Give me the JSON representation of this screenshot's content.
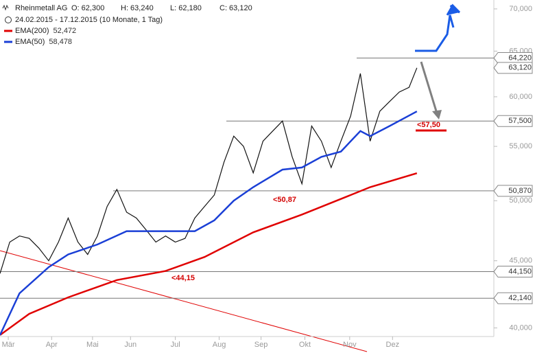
{
  "header": {
    "title": "Rheinmetall AG",
    "open": "O: 62,300",
    "high": "H: 63,240",
    "low": "L: 62,180",
    "close": "C: 63,120",
    "range": "24.02.2015 - 17.12.2015 (10 Monate, 1 Tag)"
  },
  "chart_data": {
    "type": "line",
    "log": true,
    "x": [
      0,
      1,
      2,
      3,
      4,
      5,
      6,
      7,
      8,
      9,
      10,
      11,
      12,
      13,
      14,
      15,
      16,
      17,
      18,
      19,
      20,
      21,
      22,
      23,
      24,
      25,
      26,
      27,
      28,
      29,
      30,
      31,
      32,
      33,
      34,
      35,
      36,
      37,
      38,
      39,
      40,
      41,
      42,
      42.8
    ],
    "price": [
      44000,
      46500,
      47000,
      46800,
      46000,
      45000,
      46500,
      48500,
      46500,
      45500,
      47000,
      49500,
      51000,
      49000,
      48500,
      47500,
      46500,
      47000,
      46500,
      46800,
      48500,
      49500,
      50500,
      53500,
      56000,
      55000,
      52500,
      55500,
      56500,
      57500,
      54000,
      51500,
      57000,
      55500,
      53000,
      55500,
      58000,
      62500,
      55500,
      58500,
      59500,
      60500,
      61000,
      63120
    ],
    "series": [
      {
        "name": "EMA(200)",
        "value_label": "52,472",
        "color": "#e00000",
        "x": [
          0,
          3,
          7,
          12,
          17,
          21,
          26,
          31,
          36,
          38,
          42.8
        ],
        "values": [
          39500,
          41000,
          42200,
          43500,
          44200,
          45300,
          47300,
          48800,
          50500,
          51200,
          52472
        ]
      },
      {
        "name": "EMA(50)",
        "value_label": "58,478",
        "color": "#1a3fd6",
        "x": [
          0,
          2,
          5,
          7,
          10,
          13,
          17,
          20,
          22,
          24,
          26,
          29,
          31,
          33,
          35,
          37,
          38,
          40,
          42.8
        ],
        "values": [
          39500,
          42500,
          44500,
          45500,
          46300,
          47400,
          47400,
          47400,
          48300,
          50000,
          51200,
          52800,
          53000,
          54000,
          54500,
          56500,
          56000,
          57000,
          58478
        ]
      }
    ],
    "xlim": [
      0,
      50.7
    ],
    "ylim": [
      39400,
      71100
    ],
    "yticks": [
      {
        "value": 40000,
        "label": "40,000"
      },
      {
        "value": 45000,
        "label": "45,000"
      },
      {
        "value": 50000,
        "label": "50,000"
      },
      {
        "value": 55000,
        "label": "55,000"
      },
      {
        "value": 60000,
        "label": "60,000"
      },
      {
        "value": 65000,
        "label": "65,000"
      },
      {
        "value": 70000,
        "label": "70,000"
      }
    ],
    "xticks": [
      {
        "value": 0.85,
        "label": "Mär"
      },
      {
        "value": 5.3,
        "label": "Apr"
      },
      {
        "value": 9.5,
        "label": "Mai"
      },
      {
        "value": 13.4,
        "label": "Jun"
      },
      {
        "value": 18,
        "label": "Jul"
      },
      {
        "value": 22.5,
        "label": "Aug"
      },
      {
        "value": 26.8,
        "label": "Sep"
      },
      {
        "value": 31.3,
        "label": "Okt"
      },
      {
        "value": 35.9,
        "label": "Nov"
      },
      {
        "value": 40.3,
        "label": "Dez"
      }
    ],
    "levels": [
      {
        "value": 64220,
        "label": "64,220"
      },
      {
        "value": 57500,
        "label": "57,500"
      },
      {
        "value": 50870,
        "label": "50,870"
      },
      {
        "value": 44150,
        "label": "44,150"
      },
      {
        "value": 42140,
        "label": "42,140"
      }
    ],
    "last": {
      "value": 63120,
      "label": "63,120"
    },
    "annotations": [
      "<44,15",
      "<50,87",
      "<57,50"
    ]
  }
}
